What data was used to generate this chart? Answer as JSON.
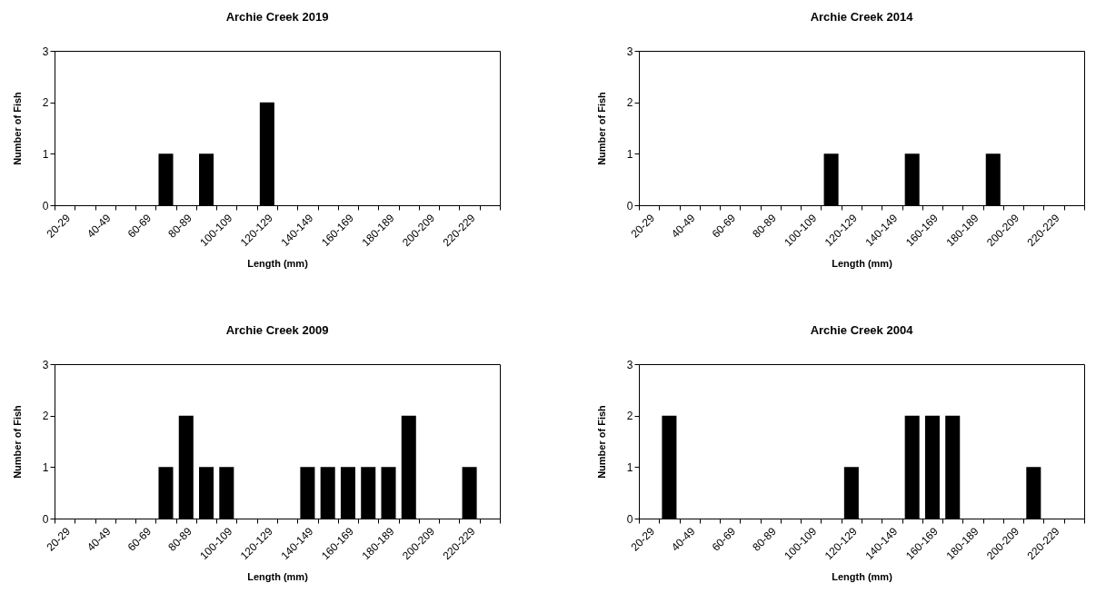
{
  "chart_data": [
    {
      "type": "bar",
      "title": "Archie Creek 2019",
      "xlabel": "Length (mm)",
      "ylabel": "Number of Fish",
      "color": "#000000",
      "categories": [
        "20-29",
        null,
        "40-49",
        null,
        "60-69",
        null,
        "80-89",
        null,
        "100-109",
        null,
        "120-129",
        null,
        "140-149",
        null,
        "160-169",
        null,
        "180-189",
        null,
        "200-209",
        null,
        "220-229",
        null
      ],
      "values": [
        0,
        0,
        0,
        0,
        0,
        1,
        0,
        1,
        0,
        0,
        2,
        0,
        0,
        0,
        0,
        0,
        0,
        0,
        0,
        0,
        0,
        0
      ],
      "ylim": [
        0,
        3
      ],
      "yticks": [
        0,
        1,
        2,
        3
      ]
    },
    {
      "type": "bar",
      "title": "Archie Creek 2014",
      "xlabel": "Length (mm)",
      "ylabel": "Number of Fish",
      "color": "#000000",
      "categories": [
        "20-29",
        null,
        "40-49",
        null,
        "60-69",
        null,
        "80-89",
        null,
        "100-109",
        null,
        "120-129",
        null,
        "140-149",
        null,
        "160-169",
        null,
        "180-189",
        null,
        "200-209",
        null,
        "220-229",
        null
      ],
      "values": [
        0,
        0,
        0,
        0,
        0,
        0,
        0,
        0,
        0,
        1,
        0,
        0,
        0,
        1,
        0,
        0,
        0,
        1,
        0,
        0,
        0,
        0
      ],
      "ylim": [
        0,
        3
      ],
      "yticks": [
        0,
        1,
        2,
        3
      ]
    },
    {
      "type": "bar",
      "title": "Archie Creek 2009",
      "xlabel": "Length (mm)",
      "ylabel": "Number of Fish",
      "color": "#000000",
      "categories": [
        "20-29",
        null,
        "40-49",
        null,
        "60-69",
        null,
        "80-89",
        null,
        "100-109",
        null,
        "120-129",
        null,
        "140-149",
        null,
        "160-169",
        null,
        "180-189",
        null,
        "200-209",
        null,
        "220-229",
        null
      ],
      "values": [
        0,
        0,
        0,
        0,
        0,
        1,
        2,
        1,
        1,
        0,
        0,
        0,
        1,
        1,
        1,
        1,
        1,
        2,
        0,
        0,
        1,
        0
      ],
      "ylim": [
        0,
        3
      ],
      "yticks": [
        0,
        1,
        2,
        3
      ]
    },
    {
      "type": "bar",
      "title": "Archie Creek 2004",
      "xlabel": "Length (mm)",
      "ylabel": "Number of Fish",
      "color": "#000000",
      "categories": [
        "20-29",
        null,
        "40-49",
        null,
        "60-69",
        null,
        "80-89",
        null,
        "100-109",
        null,
        "120-129",
        null,
        "140-149",
        null,
        "160-169",
        null,
        "180-189",
        null,
        "200-209",
        null,
        "220-229",
        null
      ],
      "values": [
        0,
        2,
        0,
        0,
        0,
        0,
        0,
        0,
        0,
        0,
        1,
        0,
        0,
        2,
        2,
        2,
        0,
        0,
        0,
        1,
        0,
        0
      ],
      "ylim": [
        0,
        3
      ],
      "yticks": [
        0,
        1,
        2,
        3
      ]
    }
  ]
}
